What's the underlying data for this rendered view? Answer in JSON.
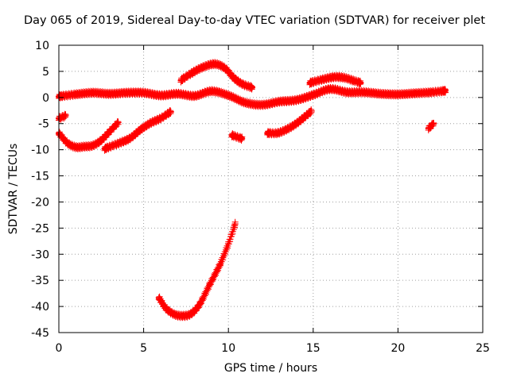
{
  "chart_data": {
    "type": "scatter",
    "title": "Day 065 of 2019, Sidereal Day-to-day VTEC variation (SDTVAR) for receiver plet",
    "xlabel": "GPS time / hours",
    "ylabel": "SDTVAR / TECUs",
    "xlim": [
      0,
      25
    ],
    "ylim": [
      -45,
      10
    ],
    "xticks": [
      0,
      5,
      10,
      15,
      20,
      25
    ],
    "yticks": [
      10,
      5,
      0,
      -5,
      -10,
      -15,
      -20,
      -25,
      -30,
      -35,
      -40,
      -45
    ],
    "grid": true,
    "marker": "plus",
    "color": "#ff0000",
    "series": [
      {
        "name": "arc-main-flat",
        "x": [
          0,
          1,
          2,
          3,
          4,
          5,
          6,
          7,
          8,
          9,
          10,
          11,
          12,
          13,
          14,
          15,
          16,
          17,
          18,
          19,
          20,
          21,
          22,
          22.8
        ],
        "y": [
          0.2,
          0.6,
          0.9,
          0.7,
          0.9,
          0.9,
          0.4,
          0.7,
          0.3,
          1.2,
          0.4,
          -1.0,
          -1.4,
          -0.8,
          -0.5,
          0.5,
          1.6,
          1.0,
          1.0,
          0.7,
          0.6,
          0.8,
          1.0,
          1.3
        ]
      },
      {
        "name": "arc-upper-hump",
        "x": [
          7.2,
          7.8,
          8.5,
          9.2,
          9.8,
          10.3,
          10.8,
          11.4
        ],
        "y": [
          3.3,
          4.6,
          5.8,
          6.4,
          5.6,
          3.8,
          2.6,
          1.9
        ]
      },
      {
        "name": "arc-upper-right",
        "x": [
          14.8,
          15.5,
          16.2,
          16.8,
          17.4,
          17.8
        ],
        "y": [
          2.8,
          3.4,
          3.9,
          3.8,
          3.2,
          2.8
        ]
      },
      {
        "name": "arc-lower-left",
        "x": [
          0,
          0.5,
          1,
          1.5,
          2,
          2.5,
          3,
          3.5
        ],
        "y": [
          -6.8,
          -8.7,
          -9.5,
          -9.4,
          -9.2,
          -8.2,
          -6.5,
          -4.8
        ]
      },
      {
        "name": "arc-lower-mid",
        "x": [
          2.7,
          3.5,
          4.2,
          4.8,
          5.4,
          6.0,
          6.6
        ],
        "y": [
          -9.8,
          -8.8,
          -7.8,
          -6.2,
          -4.9,
          -4.0,
          -2.7
        ]
      },
      {
        "name": "arc-lower-center",
        "x": [
          12.3,
          12.9,
          13.5,
          14.0,
          14.5,
          14.9
        ],
        "y": [
          -6.8,
          -6.8,
          -6.0,
          -5.0,
          -3.7,
          -2.6
        ]
      },
      {
        "name": "arc-left-short",
        "x": [
          0,
          0.4
        ],
        "y": [
          -4.0,
          -3.5
        ]
      },
      {
        "name": "arc-small-10h",
        "x": [
          10.2,
          10.8
        ],
        "y": [
          -7.2,
          -7.9
        ]
      },
      {
        "name": "arc-small-22h",
        "x": [
          21.8,
          22.1
        ],
        "y": [
          -5.9,
          -5.0
        ]
      },
      {
        "name": "arc-deep",
        "x": [
          5.9,
          6.3,
          6.8,
          7.3,
          7.8,
          8.3,
          8.9,
          9.5,
          10.0,
          10.4
        ],
        "y": [
          -38.3,
          -40.3,
          -41.5,
          -41.8,
          -41.4,
          -39.6,
          -35.8,
          -32.0,
          -28.0,
          -24.2
        ]
      }
    ]
  }
}
